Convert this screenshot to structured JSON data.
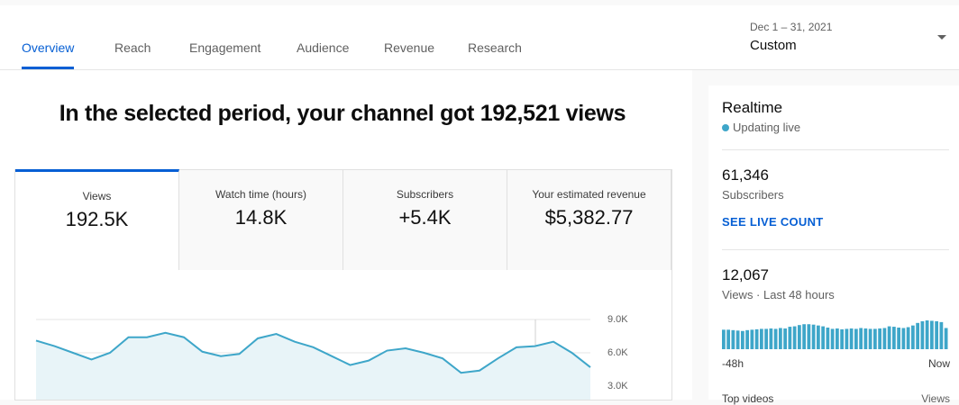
{
  "tabs": [
    "Overview",
    "Reach",
    "Engagement",
    "Audience",
    "Revenue",
    "Research"
  ],
  "date_range": {
    "period": "Dec 1 – 31, 2021",
    "label": "Custom"
  },
  "headline": "In the selected period, your channel got 192,521 views",
  "metric_cards": [
    {
      "label": "Views",
      "value": "192.5K"
    },
    {
      "label": "Watch time (hours)",
      "value": "14.8K"
    },
    {
      "label": "Subscribers",
      "value": "+5.4K"
    },
    {
      "label": "Your estimated revenue",
      "value": "$5,382.77"
    }
  ],
  "realtime": {
    "title": "Realtime",
    "status": "Updating live",
    "subscribers": {
      "value": "61,346",
      "label": "Subscribers"
    },
    "live_count_link": "SEE LIVE COUNT",
    "views": {
      "value": "12,067",
      "label": "Views · Last 48 hours"
    },
    "x_start": "-48h",
    "x_end": "Now",
    "top_videos": "Top videos",
    "views_column": "Views"
  },
  "chart_data": [
    {
      "type": "line",
      "color": "#3ea6c9",
      "values": [
        7100,
        6600,
        6000,
        5400,
        6000,
        7400,
        7400,
        7800,
        7400,
        6100,
        5700,
        5900,
        7300,
        7700,
        7000,
        6500,
        5700,
        4900,
        5300,
        6200,
        6400,
        6000,
        5500,
        4200,
        4400,
        5500,
        6500,
        6600,
        7000,
        6000,
        4700
      ],
      "ylim": [
        0,
        9000
      ],
      "yticks": [
        {
          "value": 9000,
          "label": "9.0K"
        },
        {
          "value": 6000,
          "label": "6.0K"
        },
        {
          "value": 3000,
          "label": "3.0K"
        }
      ],
      "grid": true
    },
    {
      "type": "bar",
      "color": "#3ea6c9",
      "values": [
        230,
        230,
        225,
        220,
        215,
        225,
        230,
        235,
        240,
        240,
        245,
        240,
        250,
        245,
        265,
        270,
        285,
        295,
        295,
        290,
        280,
        270,
        255,
        240,
        245,
        235,
        240,
        245,
        240,
        250,
        245,
        240,
        240,
        245,
        250,
        270,
        265,
        255,
        250,
        260,
        280,
        310,
        330,
        340,
        335,
        330,
        320,
        250
      ]
    }
  ]
}
